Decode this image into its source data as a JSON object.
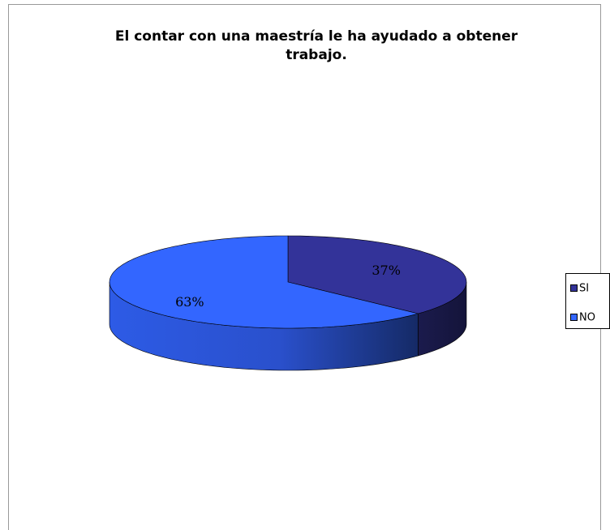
{
  "chart_data": {
    "type": "pie",
    "title": "El  contar con una maestría le ha ayudado a obtener trabajo.",
    "categories": [
      "SI",
      "NO"
    ],
    "values": [
      37,
      63
    ],
    "value_labels": [
      "37%",
      "63%"
    ],
    "colors": [
      "#333399",
      "#3366ff"
    ]
  }
}
